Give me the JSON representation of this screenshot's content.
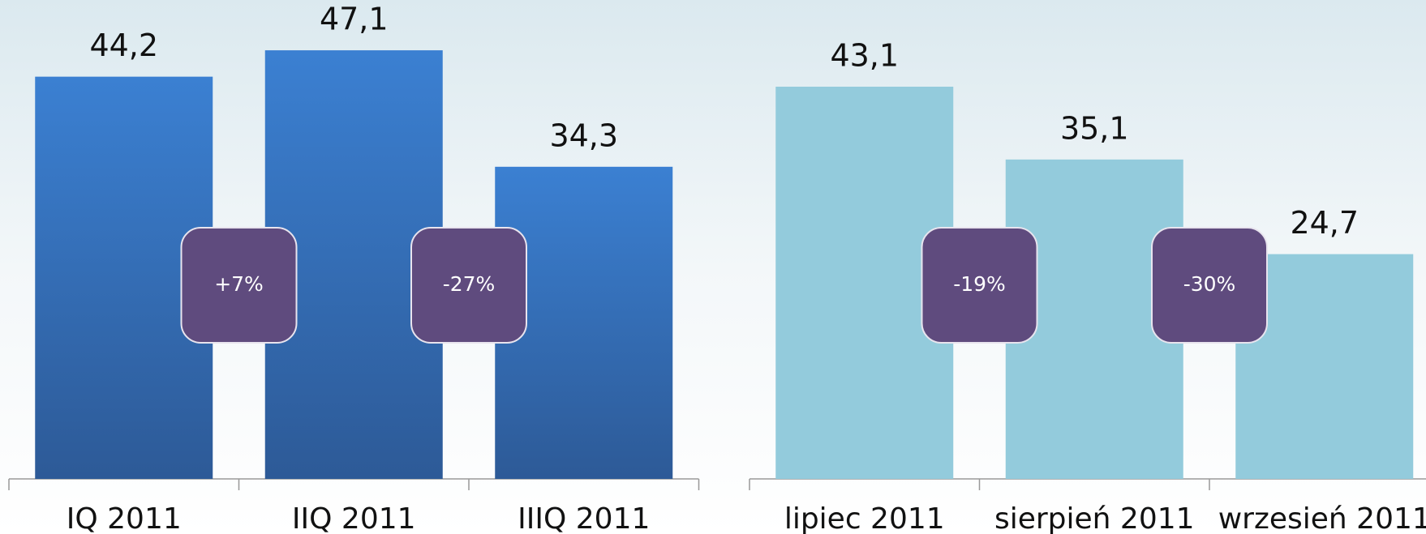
{
  "chart_data": [
    {
      "type": "bar",
      "categories": [
        "IQ 2011",
        "IIQ 2011",
        "IIIQ 2011"
      ],
      "values": [
        44.2,
        47.1,
        34.3
      ],
      "value_labels": [
        "44,2",
        "47,1",
        "34,3"
      ],
      "color": "#3a7fd0",
      "annotations": [
        "+7%",
        "-27%"
      ]
    },
    {
      "type": "bar",
      "categories": [
        "lipiec 2011",
        "sierpień 2011",
        "wrzesień 2011"
      ],
      "values": [
        43.1,
        35.1,
        24.7
      ],
      "value_labels": [
        "43,1",
        "35,1",
        "24,7"
      ],
      "color": "#93cbdc",
      "annotations": [
        "-19%",
        "-30%"
      ]
    }
  ]
}
